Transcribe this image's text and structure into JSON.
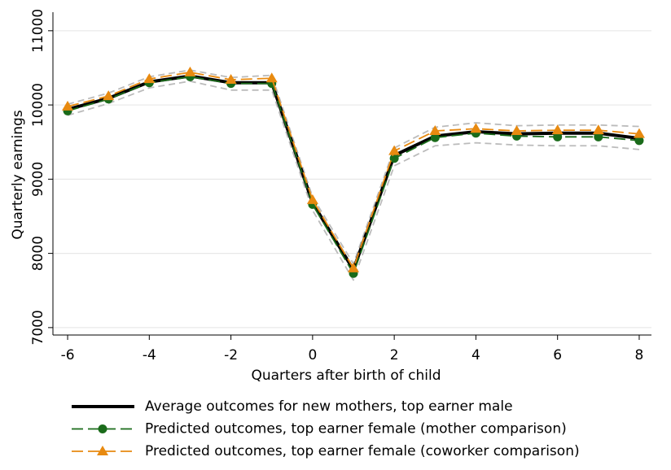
{
  "chart_data": {
    "type": "line",
    "x_label": "Quarters after birth of child",
    "y_label": "Quarterly earnings",
    "x": [
      -6,
      -5,
      -4,
      -3,
      -2,
      -1,
      0,
      1,
      2,
      3,
      4,
      5,
      6,
      7,
      8
    ],
    "series": [
      {
        "color": "#bbbbbb",
        "dash": "8 5",
        "width": 1.8,
        "values": [
          9860,
          10020,
          10230,
          10320,
          10200,
          10200,
          8580,
          7640,
          9180,
          9450,
          9490,
          9460,
          9450,
          9450,
          9400
        ]
      },
      {
        "color": "#bbbbbb",
        "dash": "8 5",
        "width": 1.8,
        "values": [
          10010,
          10160,
          10380,
          10470,
          10370,
          10400,
          8760,
          7860,
          9420,
          9700,
          9760,
          9720,
          9730,
          9730,
          9710
        ]
      },
      {
        "name": "Average outcomes for new mothers, top earner male",
        "color": "#000000",
        "width": 4,
        "values": [
          9940,
          10090,
          10310,
          10390,
          10300,
          10300,
          8680,
          7780,
          9320,
          9580,
          9640,
          9610,
          9620,
          9620,
          9550
        ]
      },
      {
        "name": "Predicted outcomes, top earner female (mother comparison)",
        "color": "#1a6b1a",
        "dash": "14 6",
        "width": 1.8,
        "marker": "circle",
        "values": [
          9920,
          10080,
          10300,
          10380,
          10290,
          10290,
          8660,
          7730,
          9280,
          9560,
          9620,
          9580,
          9570,
          9570,
          9520
        ]
      },
      {
        "name": "Predicted outcomes, top earner female (coworker comparison)",
        "color": "#e88a10",
        "dash": "14 6",
        "width": 1.8,
        "marker": "triangle",
        "values": [
          9980,
          10120,
          10350,
          10440,
          10340,
          10360,
          8720,
          7800,
          9380,
          9650,
          9680,
          9650,
          9660,
          9660,
          9610
        ]
      }
    ],
    "xlim": [
      -6.36,
      8.3
    ],
    "ylim": [
      6900,
      11250
    ],
    "xticks": [
      -6,
      -4,
      -2,
      0,
      2,
      4,
      6,
      8
    ],
    "yticks": [
      7000,
      8000,
      9000,
      10000,
      11000
    ],
    "grid": true
  }
}
